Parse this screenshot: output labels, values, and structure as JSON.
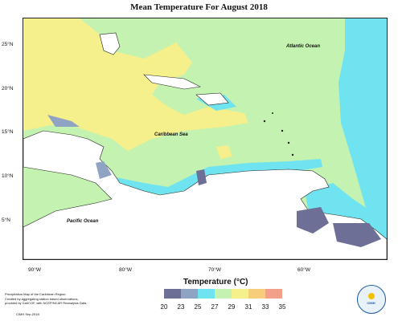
{
  "title": "Mean Temperature For August 2018",
  "map": {
    "lat_labels": [
      "25°N",
      "20°N",
      "15°N",
      "10°N",
      "5°N"
    ],
    "lon_labels": [
      "90°W",
      "80°W",
      "70°W",
      "60°W"
    ],
    "places": {
      "atlantic": "Atlantic Ocean",
      "caribbean": "Caribbean Sea",
      "pacific": "Pacific Ocean"
    }
  },
  "legend": {
    "title": "Temperature (°C)",
    "ticks": [
      "20",
      "23",
      "25",
      "27",
      "29",
      "31",
      "33",
      "35"
    ],
    "colors": [
      "#6d6f97",
      "#8fa3c2",
      "#6fe3ef",
      "#c4f2b1",
      "#f5f08b",
      "#f7cd7c",
      "#f2a08a"
    ]
  },
  "footnote": {
    "line1": "Precipitation Map of the Caribbean Region.",
    "line2": "Created by aggregating station based observations,",
    "line3": "provided by CariCOF, with NCEP/NCAR Reanalysis Data.",
    "credit": "CIMH Sep-2018"
  },
  "logo": {
    "text": "CIMH"
  }
}
